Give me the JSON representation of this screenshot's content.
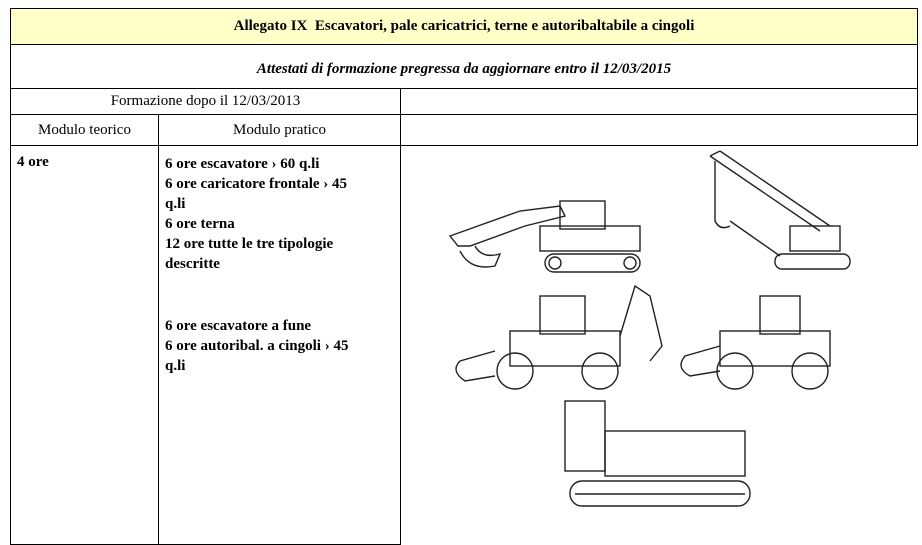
{
  "header": {
    "title": "Allegato IX  Escavatori, pale caricatrici, terne e autoribaltabile a cingoli",
    "subtitle": "Attestati di formazione pregressa da aggiornare entro il 12/03/2015"
  },
  "table": {
    "group_header": "Formazione dopo il 12/03/2013",
    "columns": [
      "Modulo teorico",
      "Modulo pratico"
    ],
    "theory": "4 ore",
    "practice": [
      "6 ore escavatore › 60 q.li",
      "6 ore caricatore frontale › 45 q.li",
      "6 ore terna",
      "12 ore tutte le tre tipologie descritte",
      "6 ore escavatore a fune",
      "6 ore autoribal. a cingoli › 45 q.li"
    ]
  }
}
